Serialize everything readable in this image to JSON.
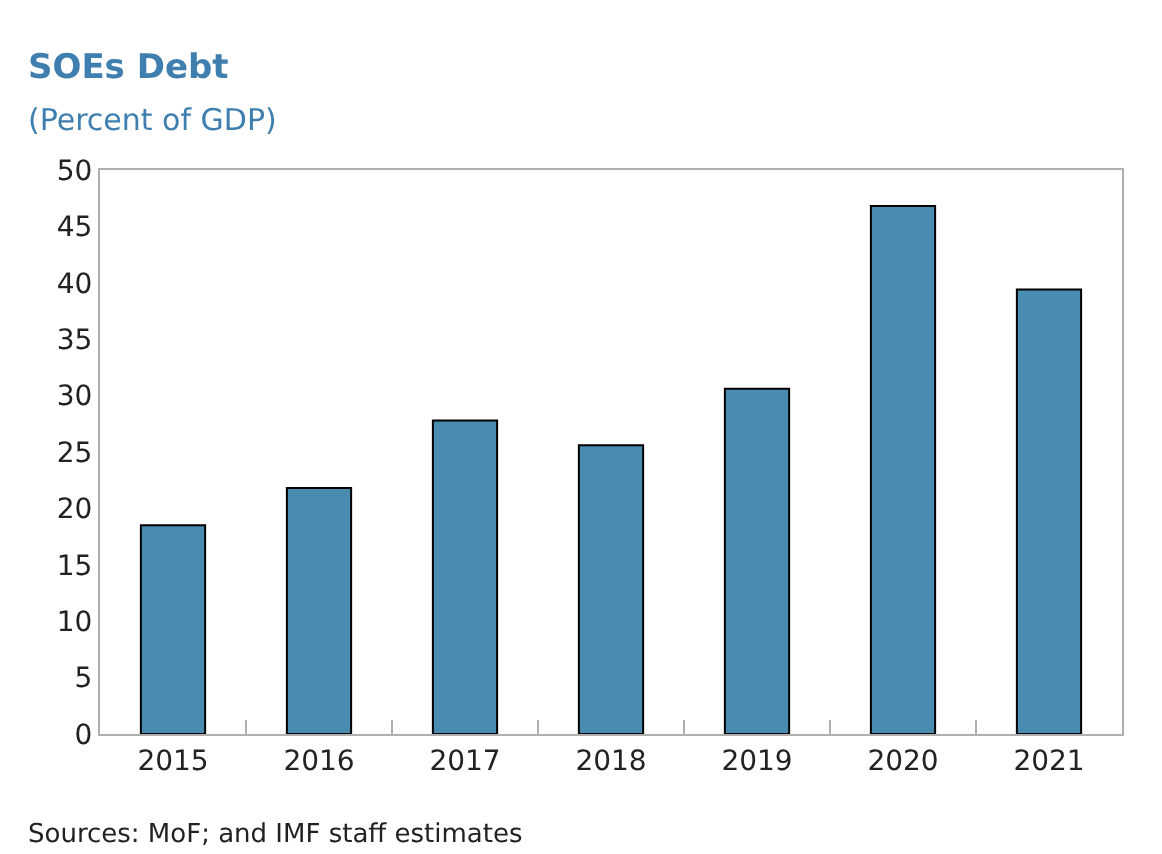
{
  "chart_data": {
    "type": "bar",
    "title": "SOEs Debt",
    "subtitle": "(Percent of GDP)",
    "categories": [
      "2015",
      "2016",
      "2017",
      "2018",
      "2019",
      "2020",
      "2021"
    ],
    "values": [
      18.5,
      21.8,
      27.8,
      25.6,
      30.6,
      46.8,
      39.4
    ],
    "color": "#4a8bb0",
    "ylim": [
      0,
      50
    ],
    "yticks": [
      0,
      5,
      10,
      15,
      20,
      25,
      30,
      35,
      40,
      45,
      50
    ],
    "annotations": [
      "Sources: MoF; and IMF staff estimates"
    ]
  }
}
